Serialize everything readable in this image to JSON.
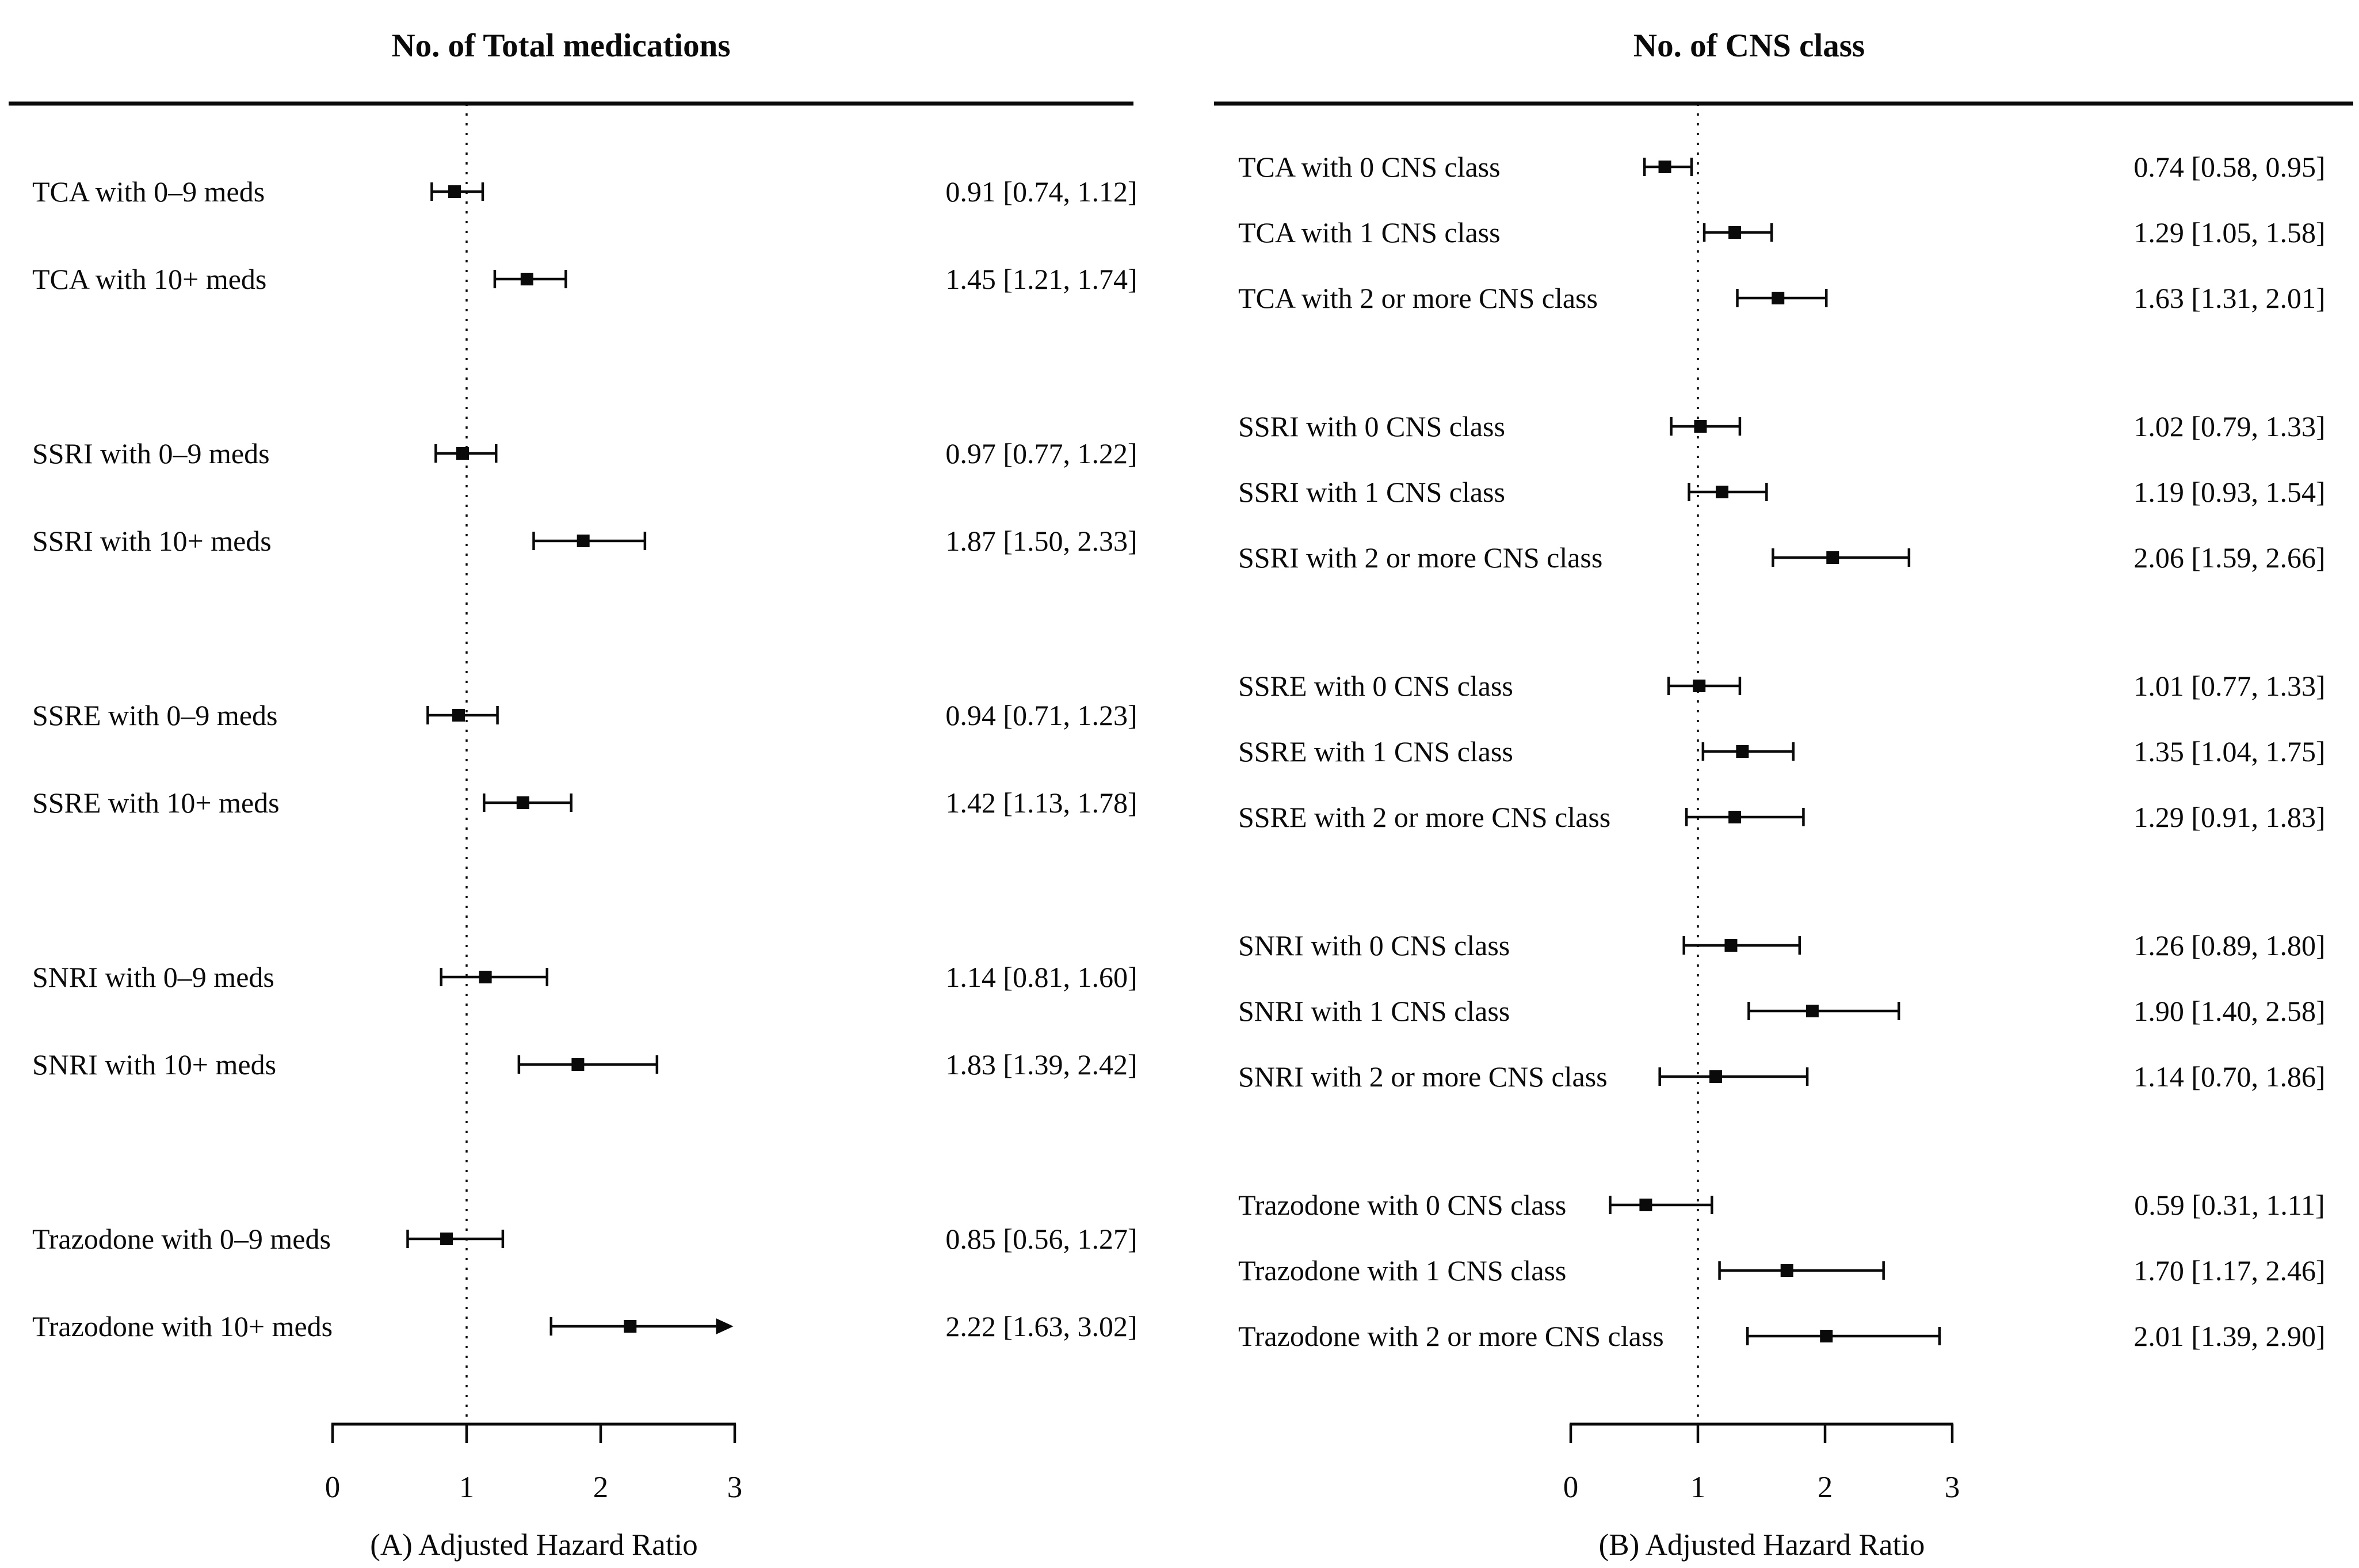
{
  "figure": {
    "background_color": "#ffffff",
    "ink_color": "#0a0a0a"
  },
  "chart_data": [
    {
      "type": "forest",
      "title": "No. of Total medications",
      "xlabel": "(A) Adjusted Hazard Ratio",
      "xlim": [
        0,
        3
      ],
      "ticks": [
        0,
        1,
        2,
        3
      ],
      "reference_line": 1,
      "grid": false,
      "legend": "none",
      "groups": [
        {
          "rows": [
            {
              "label": "TCA with 0–9 meds",
              "est": 0.91,
              "lo": 0.74,
              "hi": 1.12,
              "text": "0.91 [0.74, 1.12]"
            },
            {
              "label": "TCA with 10+ meds",
              "est": 1.45,
              "lo": 1.21,
              "hi": 1.74,
              "text": "1.45 [1.21, 1.74]"
            }
          ]
        },
        {
          "rows": [
            {
              "label": "SSRI with 0–9 meds",
              "est": 0.97,
              "lo": 0.77,
              "hi": 1.22,
              "text": "0.97 [0.77, 1.22]"
            },
            {
              "label": "SSRI with 10+ meds",
              "est": 1.87,
              "lo": 1.5,
              "hi": 2.33,
              "text": "1.87 [1.50, 2.33]"
            }
          ]
        },
        {
          "rows": [
            {
              "label": "SSRE with 0–9 meds",
              "est": 0.94,
              "lo": 0.71,
              "hi": 1.23,
              "text": "0.94 [0.71, 1.23]"
            },
            {
              "label": "SSRE with 10+ meds",
              "est": 1.42,
              "lo": 1.13,
              "hi": 1.78,
              "text": "1.42 [1.13, 1.78]"
            }
          ]
        },
        {
          "rows": [
            {
              "label": "SNRI with 0–9 meds",
              "est": 1.14,
              "lo": 0.81,
              "hi": 1.6,
              "text": "1.14 [0.81, 1.60]"
            },
            {
              "label": "SNRI with 10+ meds",
              "est": 1.83,
              "lo": 1.39,
              "hi": 2.42,
              "text": "1.83 [1.39, 2.42]"
            }
          ]
        },
        {
          "rows": [
            {
              "label": "Trazodone with 0–9 meds",
              "est": 0.85,
              "lo": 0.56,
              "hi": 1.27,
              "text": "0.85 [0.56, 1.27]"
            },
            {
              "label": "Trazodone with 10+ meds",
              "est": 2.22,
              "lo": 1.63,
              "hi": 3.02,
              "arrow": true,
              "text": "2.22 [1.63, 3.02]"
            }
          ]
        }
      ]
    },
    {
      "type": "forest",
      "title": "No. of CNS class",
      "xlabel": "(B) Adjusted Hazard Ratio",
      "xlim": [
        0,
        3
      ],
      "ticks": [
        0,
        1,
        2,
        3
      ],
      "reference_line": 1,
      "grid": false,
      "legend": "none",
      "groups": [
        {
          "rows": [
            {
              "label": "TCA with 0 CNS class",
              "est": 0.74,
              "lo": 0.58,
              "hi": 0.95,
              "text": "0.74 [0.58, 0.95]"
            },
            {
              "label": "TCA with 1 CNS class",
              "est": 1.29,
              "lo": 1.05,
              "hi": 1.58,
              "text": "1.29 [1.05, 1.58]"
            },
            {
              "label": "TCA with 2 or more CNS class",
              "est": 1.63,
              "lo": 1.31,
              "hi": 2.01,
              "text": "1.63 [1.31, 2.01]"
            }
          ]
        },
        {
          "rows": [
            {
              "label": "SSRI with 0 CNS class",
              "est": 1.02,
              "lo": 0.79,
              "hi": 1.33,
              "text": "1.02 [0.79, 1.33]"
            },
            {
              "label": "SSRI with 1 CNS class",
              "est": 1.19,
              "lo": 0.93,
              "hi": 1.54,
              "text": "1.19 [0.93, 1.54]"
            },
            {
              "label": "SSRI with 2 or more CNS class",
              "est": 2.06,
              "lo": 1.59,
              "hi": 2.66,
              "text": "2.06 [1.59, 2.66]"
            }
          ]
        },
        {
          "rows": [
            {
              "label": "SSRE with 0 CNS class",
              "est": 1.01,
              "lo": 0.77,
              "hi": 1.33,
              "text": "1.01 [0.77, 1.33]"
            },
            {
              "label": "SSRE with 1 CNS class",
              "est": 1.35,
              "lo": 1.04,
              "hi": 1.75,
              "text": "1.35 [1.04, 1.75]"
            },
            {
              "label": "SSRE with 2 or more CNS class",
              "est": 1.29,
              "lo": 0.91,
              "hi": 1.83,
              "text": "1.29 [0.91, 1.83]"
            }
          ]
        },
        {
          "rows": [
            {
              "label": "SNRI with 0 CNS class",
              "est": 1.26,
              "lo": 0.89,
              "hi": 1.8,
              "text": "1.26 [0.89, 1.80]"
            },
            {
              "label": "SNRI with 1 CNS class",
              "est": 1.9,
              "lo": 1.4,
              "hi": 2.58,
              "text": "1.90 [1.40, 2.58]"
            },
            {
              "label": "SNRI with 2 or more CNS class",
              "est": 1.14,
              "lo": 0.7,
              "hi": 1.86,
              "text": "1.14 [0.70, 1.86]"
            }
          ]
        },
        {
          "rows": [
            {
              "label": "Trazodone with 0 CNS class",
              "est": 0.59,
              "lo": 0.31,
              "hi": 1.11,
              "text": "0.59 [0.31, 1.11]"
            },
            {
              "label": "Trazodone with 1 CNS class",
              "est": 1.7,
              "lo": 1.17,
              "hi": 2.46,
              "text": "1.70 [1.17, 2.46]"
            },
            {
              "label": "Trazodone with 2 or more CNS class",
              "est": 2.01,
              "lo": 1.39,
              "hi": 2.9,
              "text": "2.01 [1.39, 2.90]"
            }
          ]
        }
      ]
    }
  ]
}
